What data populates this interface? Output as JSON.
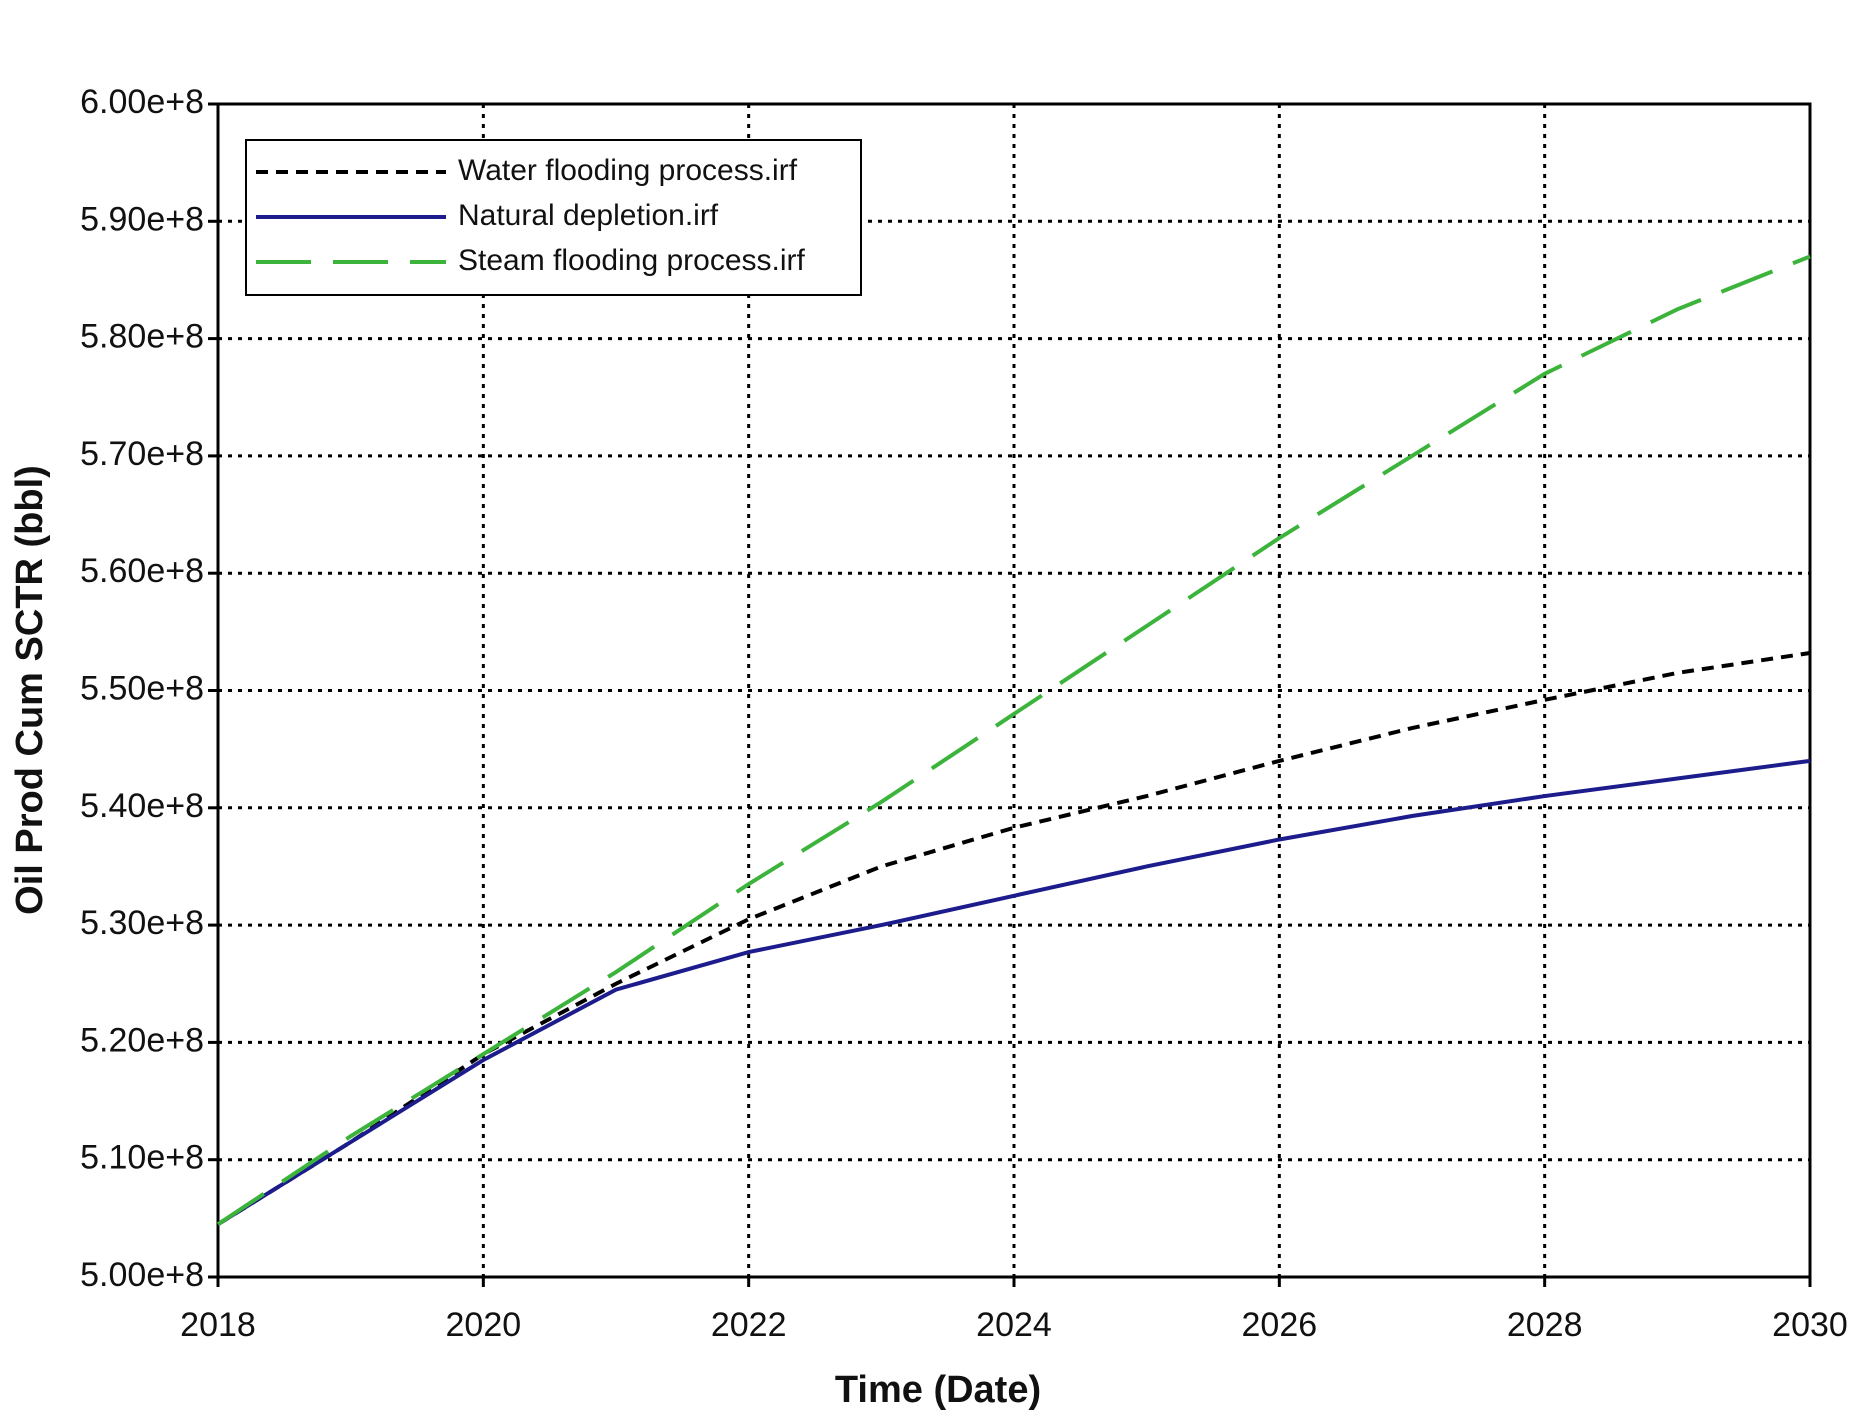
{
  "chart_data": {
    "type": "line",
    "x_label": "Time (Date)",
    "y_label": "Oil Prod Cum SCTR (bbl)",
    "x": [
      2018,
      2019,
      2020,
      2021,
      2022,
      2023,
      2024,
      2025,
      2026,
      2027,
      2028,
      2029,
      2030
    ],
    "series": [
      {
        "name": "Water flooding process.irf",
        "color": "#000000",
        "style": "dashed",
        "values": [
          504500000,
          511500000,
          519000000,
          525000000,
          530500000,
          535000000,
          538300000,
          541000000,
          544000000,
          546800000,
          549200000,
          551500000,
          553200000
        ]
      },
      {
        "name": "Natural depletion.irf",
        "color": "#1c1c8c",
        "style": "solid",
        "values": [
          504500000,
          511500000,
          518500000,
          524500000,
          527700000,
          530000000,
          532500000,
          535000000,
          537300000,
          539300000,
          541000000,
          542500000,
          544000000
        ]
      },
      {
        "name": "Steam flooding process.irf",
        "color": "#3cb43c",
        "style": "long-dash",
        "values": [
          504500000,
          512000000,
          519000000,
          526000000,
          533500000,
          540500000,
          548000000,
          555500000,
          563000000,
          570000000,
          577000000,
          582500000,
          587000000
        ]
      }
    ],
    "xlim": [
      2018,
      2030
    ],
    "xticks": [
      2018,
      2020,
      2022,
      2024,
      2026,
      2028,
      2030
    ],
    "ylim": [
      500000000,
      600000000
    ],
    "yticks": [
      {
        "value": 500000000,
        "label": "5.00e+8"
      },
      {
        "value": 510000000,
        "label": "5.10e+8"
      },
      {
        "value": 520000000,
        "label": "5.20e+8"
      },
      {
        "value": 530000000,
        "label": "5.30e+8"
      },
      {
        "value": 540000000,
        "label": "5.40e+8"
      },
      {
        "value": 550000000,
        "label": "5.50e+8"
      },
      {
        "value": 560000000,
        "label": "5.60e+8"
      },
      {
        "value": 570000000,
        "label": "5.70e+8"
      },
      {
        "value": 580000000,
        "label": "5.80e+8"
      },
      {
        "value": 590000000,
        "label": "5.90e+8"
      },
      {
        "value": 600000000,
        "label": "6.00e+8"
      }
    ],
    "grid": true,
    "legend": "top-left"
  }
}
